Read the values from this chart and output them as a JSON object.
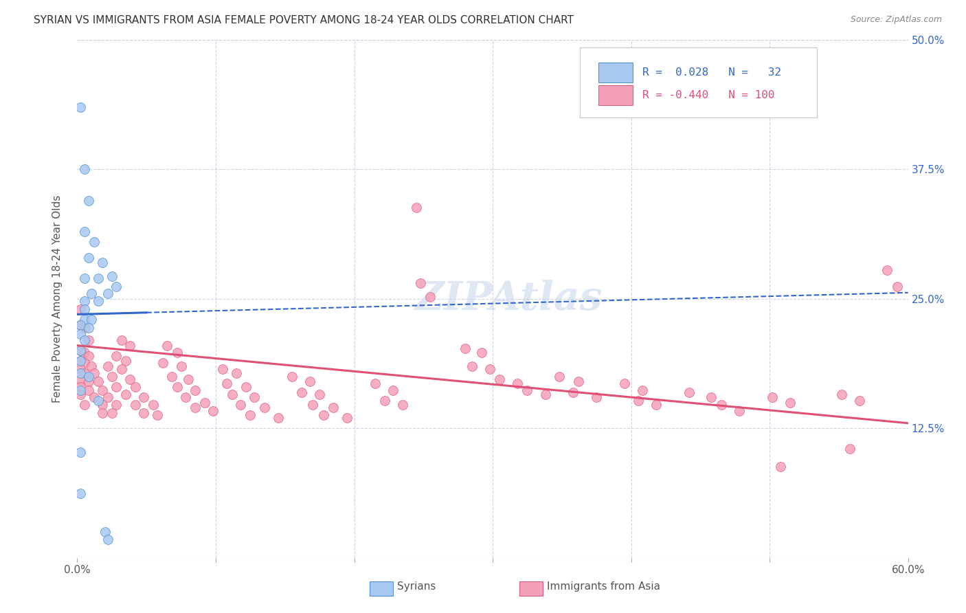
{
  "title": "SYRIAN VS IMMIGRANTS FROM ASIA FEMALE POVERTY AMONG 18-24 YEAR OLDS CORRELATION CHART",
  "source": "Source: ZipAtlas.com",
  "ylabel": "Female Poverty Among 18-24 Year Olds",
  "xlabel_syrians": "Syrians",
  "xlabel_asia": "Immigrants from Asia",
  "xlim": [
    0.0,
    0.6
  ],
  "ylim": [
    0.0,
    0.5
  ],
  "xticks": [
    0.0,
    0.1,
    0.2,
    0.3,
    0.4,
    0.5,
    0.6
  ],
  "yticks": [
    0.0,
    0.125,
    0.25,
    0.375,
    0.5
  ],
  "syrian_color": "#a8c8f0",
  "asia_color": "#f4a0b8",
  "syrian_edge_color": "#5090d0",
  "asia_edge_color": "#e06080",
  "syrian_line_color": "#3366cc",
  "asia_line_color": "#e05075",
  "right_label_color": "#3366cc",
  "legend_box_fill": "#ffffff",
  "legend_box_edge": "#cccccc",
  "watermark_color": "#c8d8ec",
  "background_color": "#ffffff",
  "grid_color": "#c8d0e0",
  "title_color": "#333333",
  "source_color": "#888888",
  "ylabel_color": "#555555",
  "tick_label_color": "#555555",
  "syrian_trend": [
    0.0,
    0.235,
    0.6,
    0.256
  ],
  "asia_trend": [
    0.0,
    0.205,
    0.6,
    0.13
  ],
  "syrian_points": [
    [
      0.002,
      0.435
    ],
    [
      0.005,
      0.375
    ],
    [
      0.008,
      0.345
    ],
    [
      0.005,
      0.315
    ],
    [
      0.012,
      0.305
    ],
    [
      0.008,
      0.29
    ],
    [
      0.018,
      0.285
    ],
    [
      0.005,
      0.27
    ],
    [
      0.015,
      0.27
    ],
    [
      0.01,
      0.255
    ],
    [
      0.022,
      0.255
    ],
    [
      0.005,
      0.248
    ],
    [
      0.015,
      0.248
    ],
    [
      0.005,
      0.24
    ],
    [
      0.025,
      0.272
    ],
    [
      0.028,
      0.262
    ],
    [
      0.005,
      0.23
    ],
    [
      0.01,
      0.23
    ],
    [
      0.002,
      0.225
    ],
    [
      0.008,
      0.222
    ],
    [
      0.002,
      0.216
    ],
    [
      0.005,
      0.21
    ],
    [
      0.002,
      0.2
    ],
    [
      0.002,
      0.19
    ],
    [
      0.002,
      0.178
    ],
    [
      0.008,
      0.175
    ],
    [
      0.002,
      0.162
    ],
    [
      0.015,
      0.152
    ],
    [
      0.002,
      0.102
    ],
    [
      0.02,
      0.025
    ],
    [
      0.022,
      0.018
    ],
    [
      0.002,
      0.062
    ]
  ],
  "asia_points": [
    [
      0.002,
      0.24
    ],
    [
      0.002,
      0.225
    ],
    [
      0.005,
      0.222
    ],
    [
      0.008,
      0.21
    ],
    [
      0.002,
      0.2
    ],
    [
      0.005,
      0.198
    ],
    [
      0.008,
      0.195
    ],
    [
      0.002,
      0.19
    ],
    [
      0.005,
      0.188
    ],
    [
      0.01,
      0.185
    ],
    [
      0.002,
      0.182
    ],
    [
      0.005,
      0.178
    ],
    [
      0.012,
      0.178
    ],
    [
      0.002,
      0.172
    ],
    [
      0.008,
      0.17
    ],
    [
      0.015,
      0.17
    ],
    [
      0.002,
      0.165
    ],
    [
      0.008,
      0.162
    ],
    [
      0.018,
      0.162
    ],
    [
      0.002,
      0.158
    ],
    [
      0.012,
      0.155
    ],
    [
      0.022,
      0.155
    ],
    [
      0.005,
      0.148
    ],
    [
      0.018,
      0.148
    ],
    [
      0.028,
      0.148
    ],
    [
      0.018,
      0.14
    ],
    [
      0.025,
      0.14
    ],
    [
      0.032,
      0.21
    ],
    [
      0.038,
      0.205
    ],
    [
      0.028,
      0.195
    ],
    [
      0.035,
      0.19
    ],
    [
      0.022,
      0.185
    ],
    [
      0.032,
      0.182
    ],
    [
      0.025,
      0.175
    ],
    [
      0.038,
      0.172
    ],
    [
      0.028,
      0.165
    ],
    [
      0.042,
      0.165
    ],
    [
      0.035,
      0.158
    ],
    [
      0.048,
      0.155
    ],
    [
      0.042,
      0.148
    ],
    [
      0.055,
      0.148
    ],
    [
      0.048,
      0.14
    ],
    [
      0.058,
      0.138
    ],
    [
      0.065,
      0.205
    ],
    [
      0.072,
      0.198
    ],
    [
      0.062,
      0.188
    ],
    [
      0.075,
      0.185
    ],
    [
      0.068,
      0.175
    ],
    [
      0.08,
      0.172
    ],
    [
      0.072,
      0.165
    ],
    [
      0.085,
      0.162
    ],
    [
      0.078,
      0.155
    ],
    [
      0.092,
      0.15
    ],
    [
      0.085,
      0.145
    ],
    [
      0.098,
      0.142
    ],
    [
      0.105,
      0.182
    ],
    [
      0.115,
      0.178
    ],
    [
      0.108,
      0.168
    ],
    [
      0.122,
      0.165
    ],
    [
      0.112,
      0.158
    ],
    [
      0.128,
      0.155
    ],
    [
      0.118,
      0.148
    ],
    [
      0.135,
      0.145
    ],
    [
      0.125,
      0.138
    ],
    [
      0.145,
      0.135
    ],
    [
      0.155,
      0.175
    ],
    [
      0.168,
      0.17
    ],
    [
      0.162,
      0.16
    ],
    [
      0.175,
      0.158
    ],
    [
      0.17,
      0.148
    ],
    [
      0.185,
      0.145
    ],
    [
      0.178,
      0.138
    ],
    [
      0.195,
      0.135
    ],
    [
      0.215,
      0.168
    ],
    [
      0.228,
      0.162
    ],
    [
      0.222,
      0.152
    ],
    [
      0.235,
      0.148
    ],
    [
      0.245,
      0.338
    ],
    [
      0.248,
      0.265
    ],
    [
      0.255,
      0.252
    ],
    [
      0.28,
      0.202
    ],
    [
      0.292,
      0.198
    ],
    [
      0.285,
      0.185
    ],
    [
      0.298,
      0.182
    ],
    [
      0.305,
      0.172
    ],
    [
      0.318,
      0.168
    ],
    [
      0.325,
      0.162
    ],
    [
      0.338,
      0.158
    ],
    [
      0.348,
      0.175
    ],
    [
      0.362,
      0.17
    ],
    [
      0.358,
      0.16
    ],
    [
      0.375,
      0.155
    ],
    [
      0.395,
      0.168
    ],
    [
      0.408,
      0.162
    ],
    [
      0.405,
      0.152
    ],
    [
      0.418,
      0.148
    ],
    [
      0.442,
      0.16
    ],
    [
      0.458,
      0.155
    ],
    [
      0.465,
      0.148
    ],
    [
      0.478,
      0.142
    ],
    [
      0.502,
      0.155
    ],
    [
      0.515,
      0.15
    ],
    [
      0.508,
      0.088
    ],
    [
      0.552,
      0.158
    ],
    [
      0.565,
      0.152
    ],
    [
      0.558,
      0.105
    ],
    [
      0.585,
      0.278
    ],
    [
      0.592,
      0.262
    ]
  ]
}
